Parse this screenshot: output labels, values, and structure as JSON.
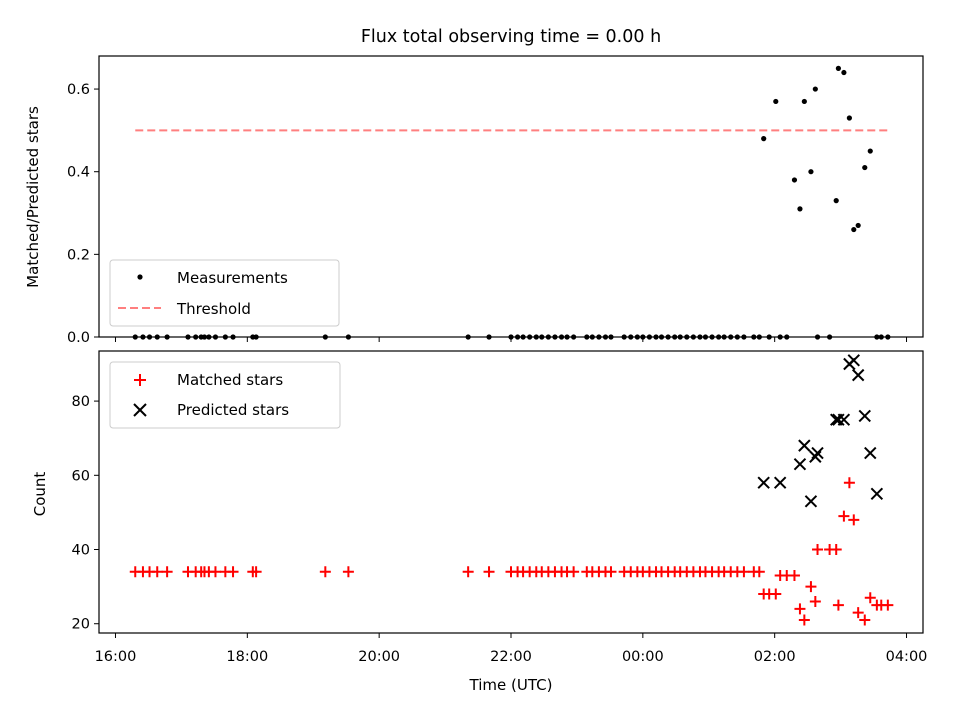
{
  "chart_data": [
    {
      "type": "scatter",
      "title": "Flux total observing time = 0.00 h",
      "xlabel": "",
      "ylabel": "Matched/Predicted stars",
      "xlim": [
        "15:45",
        "04:15"
      ],
      "ylim": [
        0.0,
        0.68
      ],
      "yticks": [
        "0.0",
        "0.2",
        "0.4",
        "0.6"
      ],
      "grid": false,
      "legend": {
        "position": "lower-left",
        "entries": [
          "Measurements",
          "Threshold"
        ]
      },
      "series": [
        {
          "name": "Measurements",
          "marker": "dot",
          "color": "#000000",
          "x": [
            "16:18",
            "16:25",
            "16:31",
            "16:38",
            "16:47",
            "17:06",
            "17:13",
            "17:18",
            "17:21",
            "17:25",
            "17:31",
            "17:40",
            "17:47",
            "18:05",
            "18:08",
            "19:11",
            "19:32",
            "21:21",
            "21:40",
            "22:00",
            "22:06",
            "22:11",
            "22:17",
            "22:23",
            "22:28",
            "22:34",
            "22:40",
            "22:46",
            "22:51",
            "22:57",
            "23:09",
            "23:14",
            "23:20",
            "23:26",
            "23:31",
            "23:43",
            "23:49",
            "23:55",
            "00:00",
            "00:06",
            "00:12",
            "00:17",
            "00:23",
            "00:29",
            "00:34",
            "00:40",
            "00:46",
            "00:52",
            "00:57",
            "01:03",
            "01:09",
            "01:14",
            "01:20",
            "01:26",
            "01:32",
            "01:41",
            "01:50",
            "01:46",
            "01:55",
            "02:01",
            "02:05",
            "02:11",
            "02:18",
            "02:23",
            "02:27",
            "02:33",
            "02:37",
            "02:39",
            "02:50",
            "02:56",
            "02:58",
            "03:03",
            "03:08",
            "03:12",
            "03:16",
            "03:22",
            "03:27",
            "03:33",
            "03:37",
            "03:43"
          ],
          "y": [
            0,
            0,
            0,
            0,
            0,
            0,
            0,
            0,
            0,
            0,
            0,
            0,
            0,
            0,
            0,
            0,
            0,
            0,
            0,
            0,
            0,
            0,
            0,
            0,
            0,
            0,
            0,
            0,
            0,
            0,
            0,
            0,
            0,
            0,
            0,
            0,
            0,
            0,
            0,
            0,
            0,
            0,
            0,
            0,
            0,
            0,
            0,
            0,
            0,
            0,
            0,
            0,
            0,
            0,
            0,
            0,
            0.48,
            0,
            0,
            0.57,
            0,
            0,
            0.38,
            0.31,
            0.57,
            0.4,
            0.6,
            0,
            0,
            0.33,
            0.65,
            0.64,
            0.53,
            0.26,
            0.27,
            0.41,
            0.45,
            0,
            0,
            0
          ]
        },
        {
          "name": "Threshold",
          "type": "line",
          "style": "dashed",
          "color": "#ff7f7f",
          "x": [
            "16:18",
            "03:43"
          ],
          "y": [
            0.5,
            0.5
          ]
        }
      ]
    },
    {
      "type": "scatter",
      "title": "",
      "xlabel": "Time (UTC)",
      "ylabel": "Count",
      "xlim": [
        "15:45",
        "04:15"
      ],
      "ylim": [
        17.5,
        93.5
      ],
      "xticks": [
        "16:00",
        "18:00",
        "20:00",
        "22:00",
        "00:00",
        "02:00",
        "04:00"
      ],
      "yticks": [
        "20",
        "40",
        "60",
        "80"
      ],
      "grid": false,
      "legend": {
        "position": "upper-left",
        "entries": [
          "Matched stars",
          "Predicted stars"
        ]
      },
      "series": [
        {
          "name": "Matched stars",
          "marker": "plus",
          "color": "#ff0000",
          "x": [
            "16:18",
            "16:25",
            "16:31",
            "16:38",
            "16:47",
            "17:06",
            "17:13",
            "17:18",
            "17:21",
            "17:25",
            "17:31",
            "17:40",
            "17:47",
            "18:05",
            "18:08",
            "19:11",
            "19:32",
            "21:21",
            "21:40",
            "22:00",
            "22:06",
            "22:11",
            "22:17",
            "22:23",
            "22:28",
            "22:34",
            "22:40",
            "22:46",
            "22:51",
            "22:57",
            "23:09",
            "23:14",
            "23:20",
            "23:26",
            "23:31",
            "23:43",
            "23:49",
            "23:55",
            "00:00",
            "00:06",
            "00:12",
            "00:17",
            "00:23",
            "00:29",
            "00:34",
            "00:40",
            "00:46",
            "00:52",
            "00:57",
            "01:03",
            "01:09",
            "01:14",
            "01:20",
            "01:26",
            "01:32",
            "01:41",
            "01:50",
            "01:46",
            "01:55",
            "02:01",
            "02:05",
            "02:11",
            "02:18",
            "02:23",
            "02:27",
            "02:33",
            "02:37",
            "02:39",
            "02:50",
            "02:56",
            "02:58",
            "03:03",
            "03:08",
            "03:12",
            "03:16",
            "03:22",
            "03:27",
            "03:33",
            "03:37",
            "03:43"
          ],
          "y": [
            34,
            34,
            34,
            34,
            34,
            34,
            34,
            34,
            34,
            34,
            34,
            34,
            34,
            34,
            34,
            34,
            34,
            34,
            34,
            34,
            34,
            34,
            34,
            34,
            34,
            34,
            34,
            34,
            34,
            34,
            34,
            34,
            34,
            34,
            34,
            34,
            34,
            34,
            34,
            34,
            34,
            34,
            34,
            34,
            34,
            34,
            34,
            34,
            34,
            34,
            34,
            34,
            34,
            34,
            34,
            34,
            28,
            34,
            28,
            28,
            33,
            33,
            33,
            24,
            21,
            30,
            26,
            40,
            40,
            40,
            25,
            49,
            58,
            48,
            23,
            21,
            27,
            25,
            25,
            25
          ]
        },
        {
          "name": "Predicted stars",
          "marker": "x",
          "color": "#000000",
          "x": [
            "01:50",
            "02:05",
            "02:23",
            "02:27",
            "02:33",
            "02:37",
            "02:39",
            "02:56",
            "02:58",
            "03:03",
            "03:08",
            "03:12",
            "03:16",
            "03:22",
            "03:27",
            "03:33"
          ],
          "y": [
            58,
            58,
            63,
            68,
            53,
            65,
            66,
            75,
            75,
            75,
            90,
            91,
            87,
            76,
            66,
            55
          ]
        }
      ]
    }
  ]
}
